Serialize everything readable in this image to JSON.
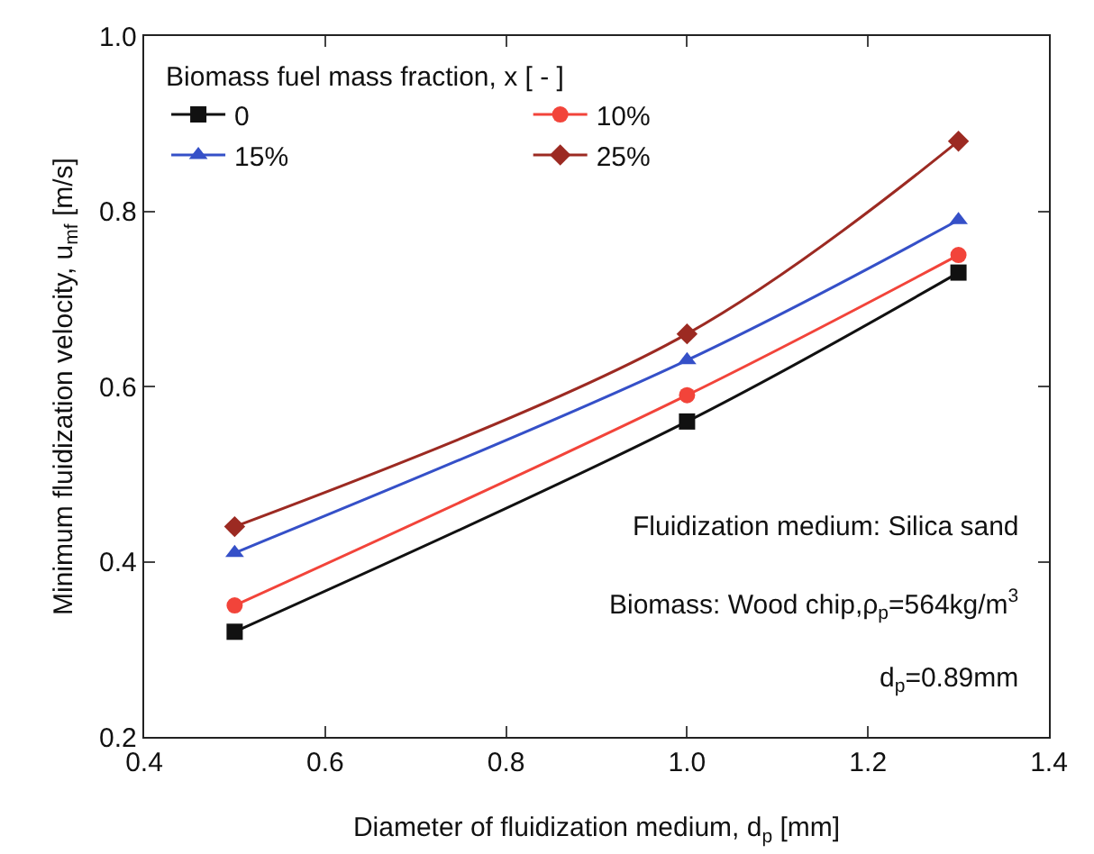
{
  "chart_data": {
    "type": "line",
    "xlabel": "Diameter of fluidization medium, d$_{p}$ [mm]",
    "ylabel": "Minimum fluidization velocity, u$_{mf}$ [m/s]",
    "legend_title": "Biomass fuel mass fraction, x [ - ]",
    "x": [
      0.5,
      1.0,
      1.3
    ],
    "series": [
      {
        "name": "0",
        "color": "#111111",
        "marker": "square",
        "values": [
          0.32,
          0.56,
          0.73
        ]
      },
      {
        "name": "10%",
        "color": "#f2443a",
        "marker": "circle",
        "values": [
          0.35,
          0.59,
          0.75
        ]
      },
      {
        "name": "15%",
        "color": "#3550c8",
        "marker": "triangle",
        "values": [
          0.41,
          0.63,
          0.79
        ]
      },
      {
        "name": "25%",
        "color": "#9c2a22",
        "marker": "diamond",
        "values": [
          0.44,
          0.66,
          0.88
        ]
      }
    ],
    "xlim": [
      0.4,
      1.4
    ],
    "xticks": [
      0.4,
      0.6,
      0.8,
      {
        "value": 1,
        "label": "1.0"
      },
      1.2,
      1.4
    ],
    "ylim": [
      0.2,
      1.0
    ],
    "yticks": [
      0.2,
      0.4,
      0.6,
      0.8,
      {
        "value": 1,
        "label": "1.0"
      }
    ],
    "grid": false,
    "legend": "top left",
    "line_style": "solid",
    "annotations": [
      "Fluidization medium: Silica sand",
      "Biomass: Wood chip,ρ$_{p}$=564kg/m$^{3}$",
      "d$_{p}$=0.89mm"
    ]
  }
}
